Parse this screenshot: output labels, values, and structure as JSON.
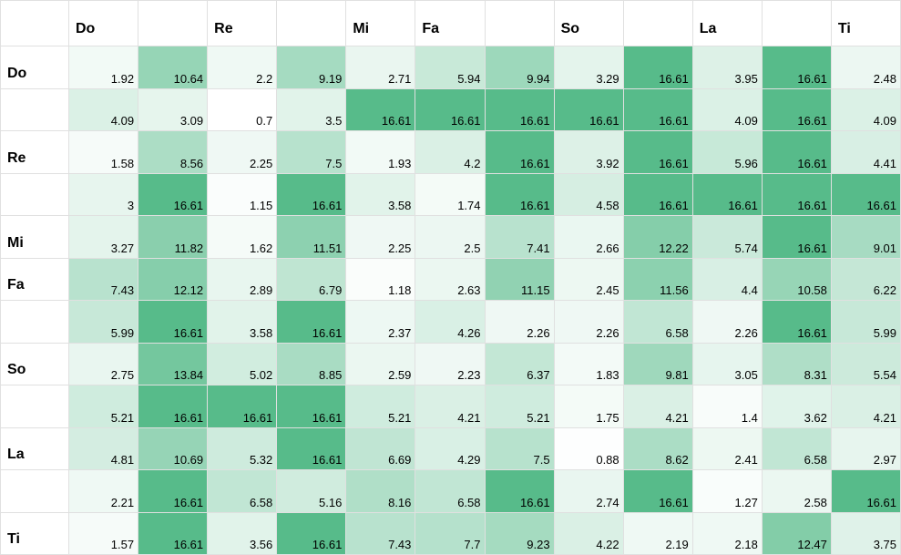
{
  "app": {
    "background_color": "#ffffff",
    "grid_color": "#e0e0e0",
    "text_color": "#000000"
  },
  "chart_data": {
    "type": "heatmap",
    "col_labels": [
      "Do",
      "",
      "Re",
      "",
      "Mi",
      "Fa",
      "",
      "So",
      "",
      "La",
      "",
      "Ti"
    ],
    "row_labels": [
      "Do",
      "",
      "Re",
      "",
      "Mi",
      "Fa",
      "",
      "So",
      "",
      "La",
      "",
      "Ti"
    ],
    "values": [
      [
        1.92,
        10.64,
        2.2,
        9.19,
        2.71,
        5.94,
        9.94,
        3.29,
        16.61,
        3.95,
        16.61,
        2.48
      ],
      [
        4.09,
        3.09,
        0.7,
        3.5,
        16.61,
        16.61,
        16.61,
        16.61,
        16.61,
        4.09,
        16.61,
        4.09
      ],
      [
        1.58,
        8.56,
        2.25,
        7.5,
        1.93,
        4.2,
        16.61,
        3.92,
        16.61,
        5.96,
        16.61,
        4.41
      ],
      [
        3,
        16.61,
        1.15,
        16.61,
        3.58,
        1.74,
        16.61,
        4.58,
        16.61,
        16.61,
        16.61,
        16.61
      ],
      [
        3.27,
        11.82,
        1.62,
        11.51,
        2.25,
        2.5,
        7.41,
        2.66,
        12.22,
        5.74,
        16.61,
        9.01
      ],
      [
        7.43,
        12.12,
        2.89,
        6.79,
        1.18,
        2.63,
        11.15,
        2.45,
        11.56,
        4.4,
        10.58,
        6.22
      ],
      [
        5.99,
        16.61,
        3.58,
        16.61,
        2.37,
        4.26,
        2.26,
        2.26,
        6.58,
        2.26,
        16.61,
        5.99
      ],
      [
        2.75,
        13.84,
        5.02,
        8.85,
        2.59,
        2.23,
        6.37,
        1.83,
        9.81,
        3.05,
        8.31,
        5.54
      ],
      [
        5.21,
        16.61,
        16.61,
        16.61,
        5.21,
        4.21,
        5.21,
        1.75,
        4.21,
        1.4,
        3.62,
        4.21
      ],
      [
        4.81,
        10.69,
        5.32,
        16.61,
        6.69,
        4.29,
        7.5,
        0.88,
        8.62,
        2.41,
        6.58,
        2.97
      ],
      [
        2.21,
        16.61,
        6.58,
        5.16,
        8.16,
        6.58,
        16.61,
        2.74,
        16.61,
        1.27,
        2.58,
        16.61
      ],
      [
        1.57,
        16.61,
        3.56,
        16.61,
        7.43,
        7.7,
        9.23,
        4.22,
        2.19,
        2.18,
        12.47,
        3.75
      ]
    ],
    "color_scale": {
      "min_value": 0.7,
      "max_value": 16.61,
      "min_color": "#ffffff",
      "max_color": "#57bb8a"
    },
    "grid": true,
    "legend": "none",
    "value_align": "bottom-right"
  }
}
